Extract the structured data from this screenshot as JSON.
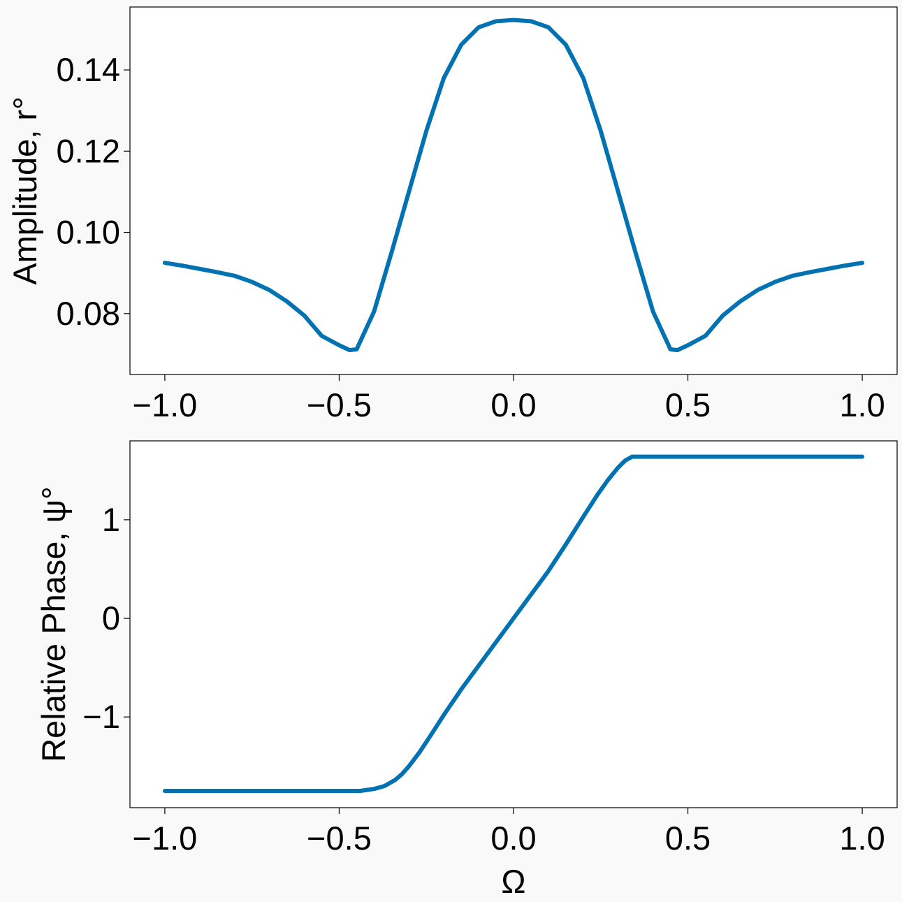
{
  "chart_data": [
    {
      "type": "line",
      "title": "",
      "xlabel": "",
      "ylabel": "Amplitude, r°",
      "xlim": [
        -1.1,
        1.1
      ],
      "ylim": [
        0.065,
        0.1555
      ],
      "xticks": [
        -1.0,
        -0.5,
        0.0,
        0.5,
        1.0
      ],
      "xtick_labels": [
        "−1.0",
        "−0.5",
        "0.0",
        "0.5",
        "1.0"
      ],
      "yticks": [
        0.08,
        0.1,
        0.12,
        0.14
      ],
      "ytick_labels": [
        "0.08",
        "0.10",
        "0.12",
        "0.14"
      ],
      "grid": false,
      "line_color": "#0072b2",
      "series": [
        {
          "x": [
            -1.0,
            -0.95,
            -0.9,
            -0.85,
            -0.8,
            -0.75,
            -0.7,
            -0.65,
            -0.6,
            -0.55,
            -0.5,
            -0.47,
            -0.45,
            -0.4,
            -0.35,
            -0.3,
            -0.25,
            -0.2,
            -0.15,
            -0.1,
            -0.05,
            0.0,
            0.05,
            0.1,
            0.15,
            0.2,
            0.25,
            0.3,
            0.35,
            0.4,
            0.45,
            0.47,
            0.5,
            0.55,
            0.6,
            0.65,
            0.7,
            0.75,
            0.8,
            0.85,
            0.9,
            0.95,
            1.0
          ],
          "y": [
            0.0925,
            0.0918,
            0.091,
            0.0902,
            0.0893,
            0.0878,
            0.0858,
            0.083,
            0.0795,
            0.0745,
            0.0722,
            0.071,
            0.0712,
            0.0805,
            0.095,
            0.11,
            0.125,
            0.138,
            0.1462,
            0.1505,
            0.152,
            0.1523,
            0.152,
            0.1505,
            0.1462,
            0.138,
            0.125,
            0.11,
            0.095,
            0.0805,
            0.0712,
            0.071,
            0.0722,
            0.0745,
            0.0795,
            0.083,
            0.0858,
            0.0878,
            0.0893,
            0.0902,
            0.091,
            0.0918,
            0.0925
          ]
        }
      ]
    },
    {
      "type": "line",
      "title": "",
      "xlabel": "Ω",
      "ylabel": "Relative Phase, ψ°",
      "xlim": [
        -1.1,
        1.1
      ],
      "ylim": [
        -1.92,
        1.8
      ],
      "xticks": [
        -1.0,
        -0.5,
        0.0,
        0.5,
        1.0
      ],
      "xtick_labels": [
        "−1.0",
        "−0.5",
        "0.0",
        "0.5",
        "1.0"
      ],
      "yticks": [
        -1,
        0,
        1
      ],
      "ytick_labels": [
        "−1",
        "0",
        "1"
      ],
      "grid": false,
      "line_color": "#0072b2",
      "series": [
        {
          "x": [
            -1.0,
            -0.9,
            -0.8,
            -0.7,
            -0.6,
            -0.5,
            -0.44,
            -0.4,
            -0.37,
            -0.34,
            -0.32,
            -0.3,
            -0.27,
            -0.24,
            -0.2,
            -0.15,
            -0.1,
            -0.05,
            0.0,
            0.05,
            0.1,
            0.15,
            0.2,
            0.24,
            0.27,
            0.3,
            0.32,
            0.34,
            0.4,
            0.5,
            0.6,
            0.7,
            0.8,
            0.9,
            1.0
          ],
          "y": [
            -1.75,
            -1.75,
            -1.75,
            -1.75,
            -1.75,
            -1.75,
            -1.75,
            -1.73,
            -1.7,
            -1.64,
            -1.58,
            -1.5,
            -1.36,
            -1.2,
            -0.98,
            -0.72,
            -0.48,
            -0.24,
            0.0,
            0.24,
            0.48,
            0.75,
            1.03,
            1.25,
            1.4,
            1.53,
            1.6,
            1.64,
            1.64,
            1.64,
            1.64,
            1.64,
            1.64,
            1.64,
            1.64
          ]
        }
      ]
    }
  ]
}
